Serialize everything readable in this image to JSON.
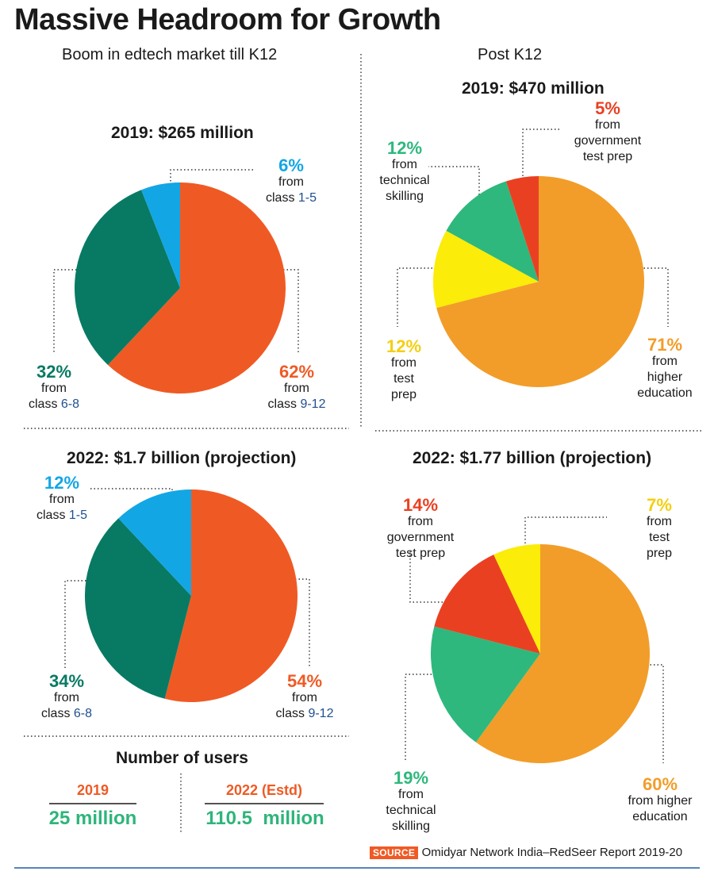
{
  "title": "Massive Headroom for Growth",
  "left_heading": "Boom in edtech market till K12",
  "right_heading": "Post K12",
  "colors": {
    "orange_red": "#ef5a24",
    "dark_green": "#087a63",
    "sky_blue": "#13a6e5",
    "amber": "#f29d29",
    "yellow": "#fbec09",
    "light_green": "#2eb87d",
    "red": "#ea4022",
    "label_blue": "#1e4f8f"
  },
  "chart_data": [
    {
      "type": "pie",
      "title": "2019: $265 million",
      "slices": [
        {
          "pct": "62%",
          "value": 62,
          "from": "from",
          "label": "class",
          "label_hl": "9-12",
          "color": "#ef5a24"
        },
        {
          "pct": "32%",
          "value": 32,
          "from": "from",
          "label": "class",
          "label_hl": "6-8",
          "color": "#087a63"
        },
        {
          "pct": "6%",
          "value": 6,
          "from": "from",
          "label": "class",
          "label_hl": "1-5",
          "color": "#13a6e5"
        }
      ]
    },
    {
      "type": "pie",
      "title": "2022: $1.7 billion (projection)",
      "slices": [
        {
          "pct": "54%",
          "value": 54,
          "from": "from",
          "label": "class",
          "label_hl": "9-12",
          "color": "#ef5a24"
        },
        {
          "pct": "34%",
          "value": 34,
          "from": "from",
          "label": "class",
          "label_hl": "6-8",
          "color": "#087a63"
        },
        {
          "pct": "12%",
          "value": 12,
          "from": "from",
          "label": "class",
          "label_hl": "1-5",
          "color": "#13a6e5"
        }
      ]
    },
    {
      "type": "pie",
      "title": "2019: $470 million",
      "slices": [
        {
          "pct": "71%",
          "value": 71,
          "lines": [
            "from",
            "higher",
            "education"
          ],
          "color": "#f29d29"
        },
        {
          "pct": "12%",
          "value": 12,
          "lines": [
            "from",
            "test",
            "prep"
          ],
          "color": "#fbec09"
        },
        {
          "pct": "12%",
          "value": 12,
          "lines": [
            "from",
            "technical",
            "skilling"
          ],
          "color": "#2eb87d"
        },
        {
          "pct": "5%",
          "value": 5,
          "lines": [
            "from",
            "government",
            "test prep"
          ],
          "color": "#ea4022"
        }
      ]
    },
    {
      "type": "pie",
      "title": "2022: $1.77 billion (projection)",
      "slices": [
        {
          "pct": "60%",
          "value": 60,
          "lines": [
            "from higher",
            "education"
          ],
          "color": "#f29d29"
        },
        {
          "pct": "19%",
          "value": 19,
          "lines": [
            "from",
            "technical",
            "skilling"
          ],
          "color": "#2eb87d"
        },
        {
          "pct": "14%",
          "value": 14,
          "lines": [
            "from",
            "government",
            "test prep"
          ],
          "color": "#ea4022"
        },
        {
          "pct": "7%",
          "value": 7,
          "lines": [
            "from",
            "test",
            "prep"
          ],
          "color": "#fbec09"
        }
      ]
    }
  ],
  "users": {
    "title": "Number of users",
    "cols": [
      {
        "year": "2019",
        "value": "25 million"
      },
      {
        "year": "2022 (Estd)",
        "value": "110.5  million"
      }
    ]
  },
  "source": {
    "tag": "SOURCE",
    "text": "Omidyar Network India–RedSeer Report 2019-20"
  }
}
